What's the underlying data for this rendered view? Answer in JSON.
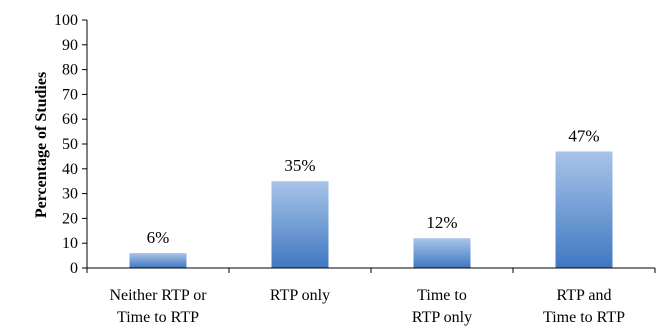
{
  "chart_data": {
    "type": "bar",
    "categories": [
      [
        "Neither RTP or",
        "Time to RTP"
      ],
      [
        "RTP only"
      ],
      [
        "Time to",
        "RTP only"
      ],
      [
        "RTP and",
        "Time to RTP"
      ]
    ],
    "values": [
      6,
      35,
      12,
      47
    ],
    "data_labels": [
      "6%",
      "35%",
      "12%",
      "47%"
    ],
    "title": "",
    "xlabel": "",
    "ylabel": "Percentage of Studies",
    "ylim": [
      0,
      100
    ],
    "yticks": [
      "0",
      "10",
      "20",
      "30",
      "40",
      "50",
      "60",
      "70",
      "80",
      "90",
      "100"
    ],
    "grid": false,
    "legend": "none",
    "colors": {
      "bar_top": "#a9c4e8",
      "bar_bottom": "#3f78c2",
      "axis": "#000000"
    }
  }
}
